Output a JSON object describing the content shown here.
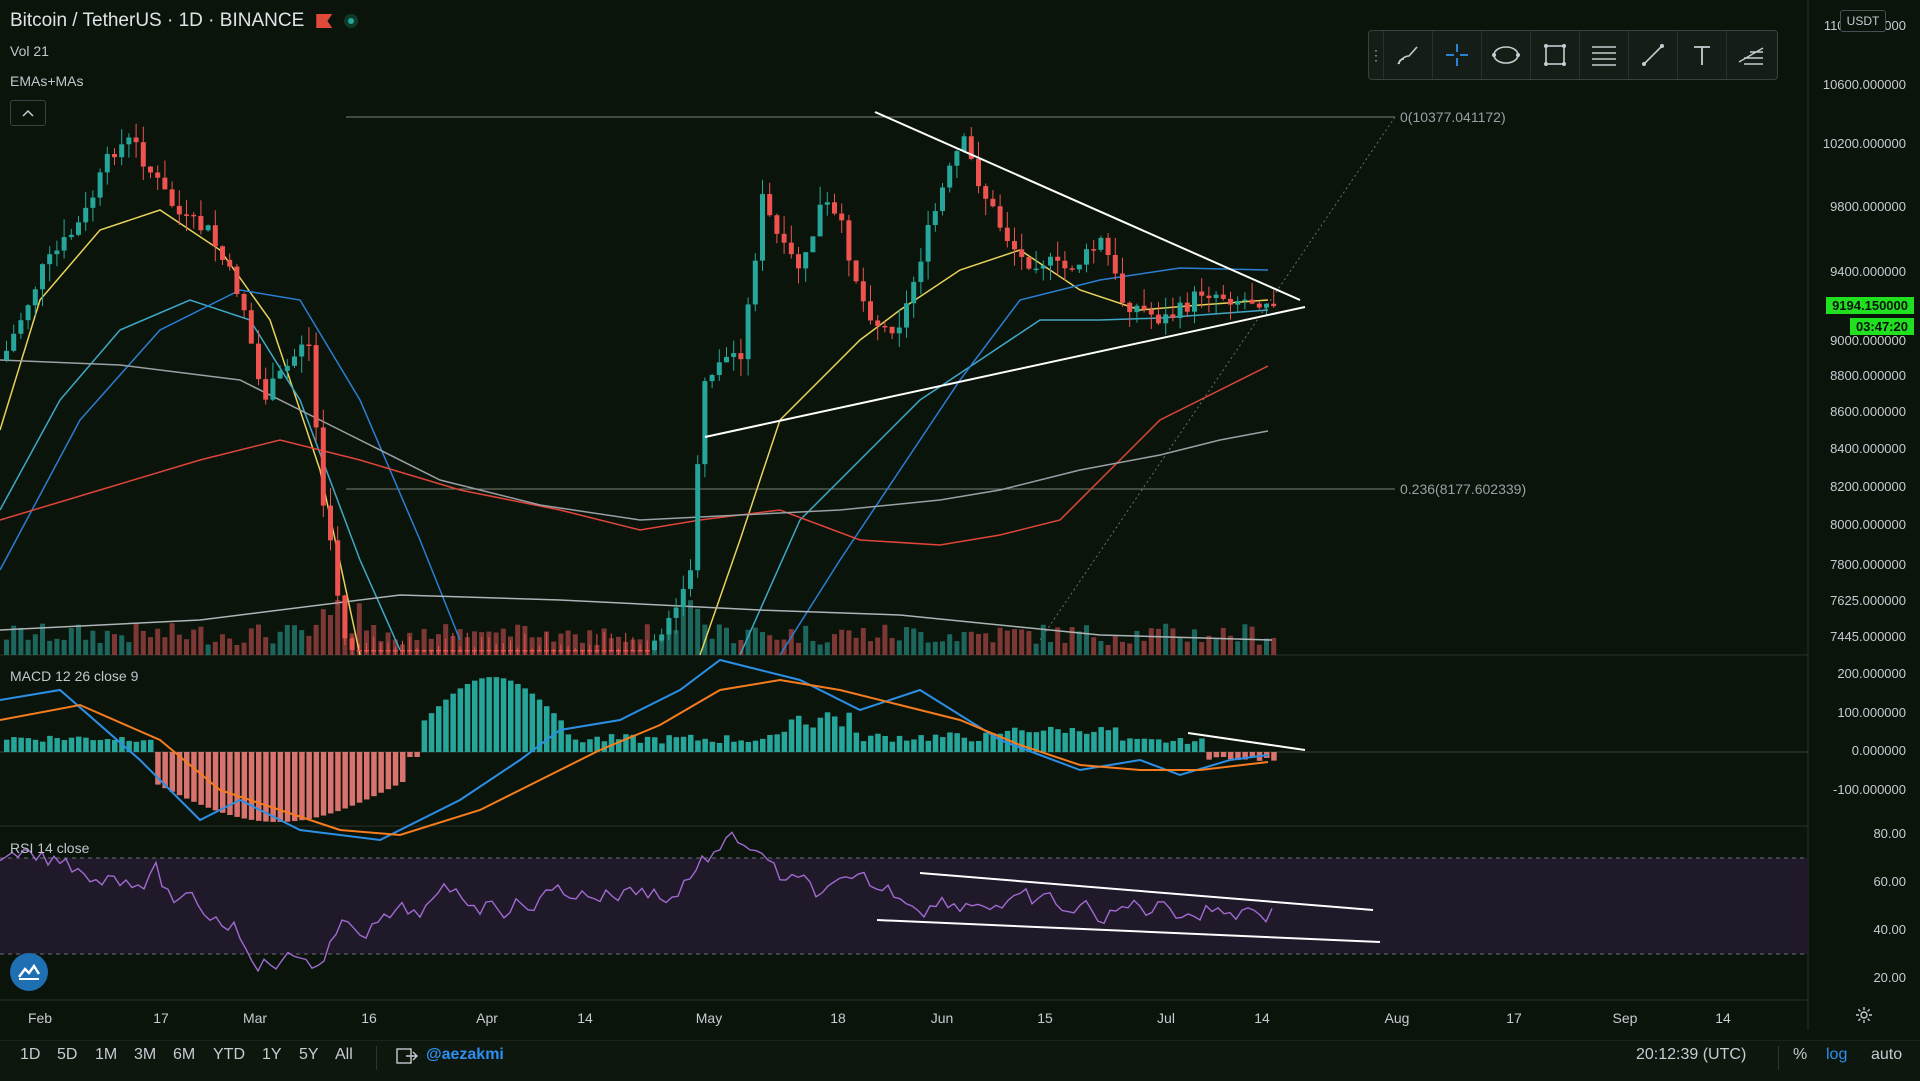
{
  "header": {
    "symbol_title": "Bitcoin / TetherUS · 1D · BINANCE",
    "vol_label": "Vol 21",
    "ma_label": "EMAs+MAs",
    "collapse_icon": "chevron-up-icon"
  },
  "drawing_toolbar": {
    "tools": [
      "brush-icon",
      "crosshair-icon",
      "ellipse-icon",
      "rectangle-icon",
      "fib-retracement-icon",
      "trendline-icon",
      "text-icon",
      "pitchfork-icon"
    ]
  },
  "price_scale": {
    "currency": "USDT",
    "labels": [
      "11000.000000",
      "10600.000000",
      "10200.000000",
      "9800.000000",
      "9400.000000",
      "9000.000000",
      "8800.000000",
      "8600.000000",
      "8400.000000",
      "8200.000000",
      "8000.000000",
      "7800.000000",
      "7625.000000",
      "7445.000000"
    ],
    "current_price": "9194.150000",
    "countdown": "03:47:20"
  },
  "fib_levels": [
    {
      "label": "0(10377.041172)"
    },
    {
      "label": "0.236(8177.602339)"
    }
  ],
  "macd": {
    "label": "MACD 12 26 close 9",
    "scale": [
      "200.000000",
      "100.000000",
      "0.000000",
      "-100.000000"
    ]
  },
  "rsi": {
    "label": "RSI 14 close",
    "scale": [
      "80.00",
      "60.00",
      "40.00",
      "20.00"
    ]
  },
  "time_axis": [
    "Feb",
    "17",
    "Mar",
    "16",
    "Apr",
    "14",
    "May",
    "18",
    "Jun",
    "15",
    "Jul",
    "14",
    "Aug",
    "17",
    "Sep",
    "14"
  ],
  "bottom_bar": {
    "timeframes": [
      "1D",
      "5D",
      "1M",
      "3M",
      "6M",
      "YTD",
      "1Y",
      "5Y",
      "All"
    ],
    "author": "@aezakmi",
    "clock": "20:12:39 (UTC)",
    "percent": "%",
    "log": "log",
    "auto": "auto"
  },
  "colors": {
    "background": "#0a140a",
    "up": "#26a69a",
    "down": "#ef5350",
    "live_price": "#20e020",
    "ema_yellow": "#e8d25a",
    "ema_cyan": "#3fa8c8",
    "ema_blue": "#2a7fd4",
    "ma_red": "#e0453a",
    "ma_grey": "#9aa0a6",
    "rsi": "#a06ad0",
    "macd_line": "#2c8fe6",
    "signal_line": "#f57c1f"
  }
}
